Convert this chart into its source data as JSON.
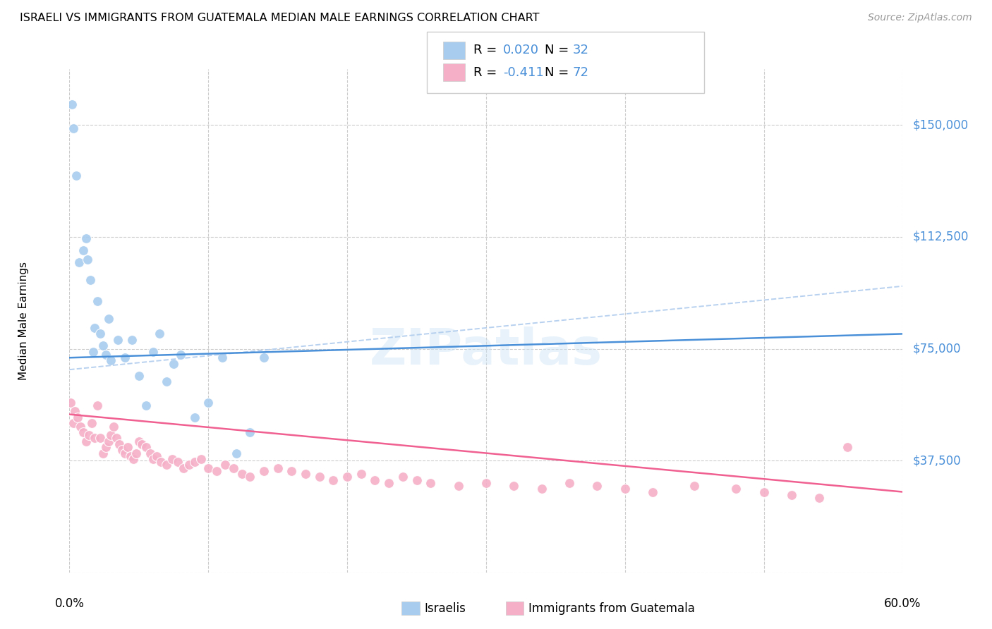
{
  "title": "ISRAELI VS IMMIGRANTS FROM GUATEMALA MEDIAN MALE EARNINGS CORRELATION CHART",
  "source": "Source: ZipAtlas.com",
  "ylabel": "Median Male Earnings",
  "yticks": [
    0,
    37500,
    75000,
    112500,
    150000
  ],
  "ytick_labels": [
    "",
    "$37,500",
    "$75,000",
    "$112,500",
    "$150,000"
  ],
  "legend_label1": "Israelis",
  "legend_label2": "Immigrants from Guatemala",
  "R1_label": "0.020",
  "N1_label": "32",
  "R2_label": "-0.411",
  "N2_label": "72",
  "blue_color": "#a8ccee",
  "pink_color": "#f5b0c8",
  "trend_blue_color": "#4a90d9",
  "trend_pink_color": "#f06090",
  "trend_dash_color": "#b0ccee",
  "stat_color": "#4a90d9",
  "stat_pink_color": "#f06090",
  "watermark": "ZIPatlas",
  "xmin": 0.0,
  "xmax": 0.6,
  "ymin": 0,
  "ymax": 168750,
  "blue_x": [
    0.002,
    0.003,
    0.005,
    0.007,
    0.01,
    0.012,
    0.013,
    0.015,
    0.017,
    0.018,
    0.02,
    0.022,
    0.024,
    0.026,
    0.028,
    0.03,
    0.035,
    0.04,
    0.045,
    0.05,
    0.055,
    0.06,
    0.065,
    0.07,
    0.075,
    0.08,
    0.09,
    0.1,
    0.11,
    0.12,
    0.13,
    0.14
  ],
  "blue_y": [
    157000,
    149000,
    133000,
    104000,
    108000,
    112000,
    105000,
    98000,
    74000,
    82000,
    91000,
    80000,
    76000,
    73000,
    85000,
    71000,
    78000,
    72000,
    78000,
    66000,
    56000,
    74000,
    80000,
    64000,
    70000,
    73000,
    52000,
    57000,
    72000,
    40000,
    47000,
    72000
  ],
  "pink_x": [
    0.001,
    0.003,
    0.004,
    0.006,
    0.008,
    0.01,
    0.012,
    0.014,
    0.016,
    0.018,
    0.02,
    0.022,
    0.024,
    0.026,
    0.028,
    0.03,
    0.032,
    0.034,
    0.036,
    0.038,
    0.04,
    0.042,
    0.044,
    0.046,
    0.048,
    0.05,
    0.052,
    0.055,
    0.058,
    0.06,
    0.063,
    0.066,
    0.07,
    0.074,
    0.078,
    0.082,
    0.086,
    0.09,
    0.095,
    0.1,
    0.106,
    0.112,
    0.118,
    0.124,
    0.13,
    0.14,
    0.15,
    0.16,
    0.17,
    0.18,
    0.19,
    0.2,
    0.21,
    0.22,
    0.23,
    0.24,
    0.25,
    0.26,
    0.28,
    0.3,
    0.32,
    0.34,
    0.36,
    0.38,
    0.4,
    0.42,
    0.45,
    0.48,
    0.5,
    0.52,
    0.54,
    0.56
  ],
  "pink_y": [
    57000,
    50000,
    54000,
    52000,
    49000,
    47000,
    44000,
    46000,
    50000,
    45000,
    56000,
    45000,
    40000,
    42000,
    44000,
    46000,
    49000,
    45000,
    43000,
    41000,
    40000,
    42000,
    39000,
    38000,
    40000,
    44000,
    43000,
    42000,
    40000,
    38000,
    39000,
    37000,
    36000,
    38000,
    37000,
    35000,
    36000,
    37000,
    38000,
    35000,
    34000,
    36000,
    35000,
    33000,
    32000,
    34000,
    35000,
    34000,
    33000,
    32000,
    31000,
    32000,
    33000,
    31000,
    30000,
    32000,
    31000,
    30000,
    29000,
    30000,
    29000,
    28000,
    30000,
    29000,
    28000,
    27000,
    29000,
    28000,
    27000,
    26000,
    25000,
    42000
  ],
  "blue_trend_x0": 0.0,
  "blue_trend_x1": 0.6,
  "blue_trend_y0": 72000,
  "blue_trend_y1": 80000,
  "pink_trend_y0": 53000,
  "pink_trend_y1": 27000,
  "dash_trend_y0": 68000,
  "dash_trend_y1": 96000
}
